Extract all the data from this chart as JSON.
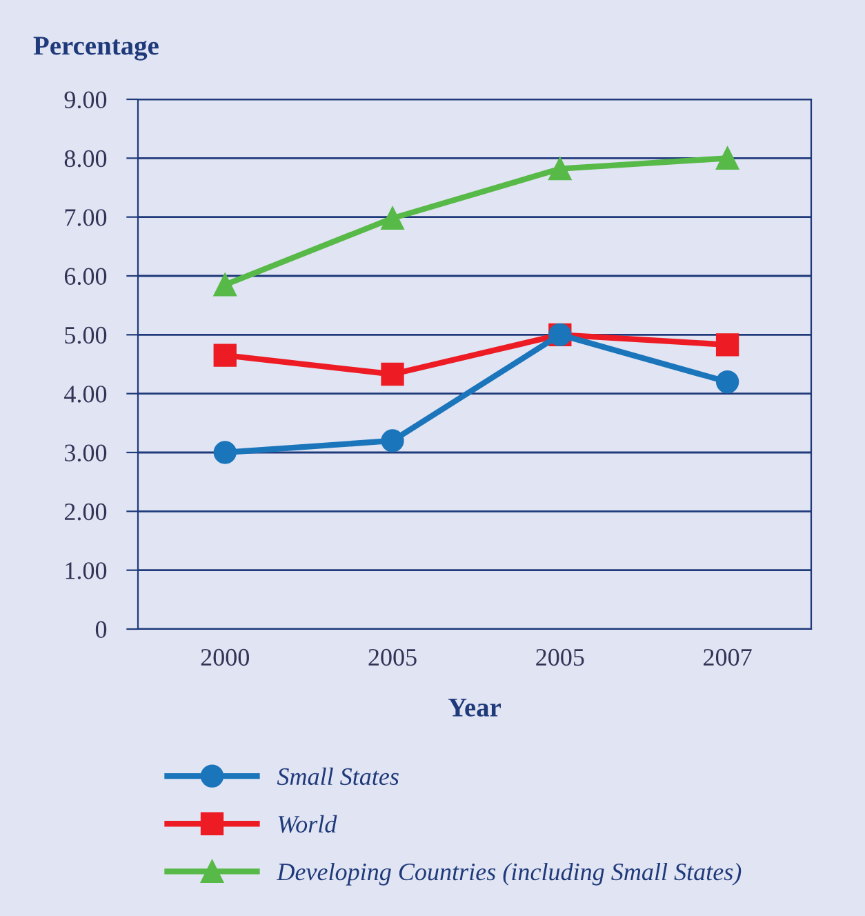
{
  "chart_data": {
    "type": "line",
    "ylabel": "Percentage",
    "xlabel": "Year",
    "categories": [
      "2000",
      "2005",
      "2005",
      "2007"
    ],
    "series": [
      {
        "name": "Small States",
        "color": "#1a75bb",
        "marker": "circle",
        "values": [
          3.0,
          3.2,
          5.0,
          4.2
        ]
      },
      {
        "name": "World",
        "color": "#ed1c24",
        "marker": "square",
        "values": [
          4.65,
          4.33,
          5.0,
          4.83
        ]
      },
      {
        "name": "Developing Countries (including Small States)",
        "color": "#57b947",
        "marker": "triangle",
        "values": [
          5.85,
          6.98,
          7.82,
          8.0
        ]
      }
    ],
    "ylim": [
      0,
      9
    ],
    "yticks": [
      {
        "value": 0,
        "label": "0"
      },
      {
        "value": 1,
        "label": "1.00"
      },
      {
        "value": 2,
        "label": "2.00"
      },
      {
        "value": 3,
        "label": "3.00"
      },
      {
        "value": 4,
        "label": "4.00"
      },
      {
        "value": 5,
        "label": "5.00"
      },
      {
        "value": 6,
        "label": "6.00"
      },
      {
        "value": 7,
        "label": "7.00"
      },
      {
        "value": 8,
        "label": "8.00"
      },
      {
        "value": 9,
        "label": "9.00"
      }
    ],
    "grid": "y",
    "legend": "bottom",
    "line_style": "solid"
  }
}
